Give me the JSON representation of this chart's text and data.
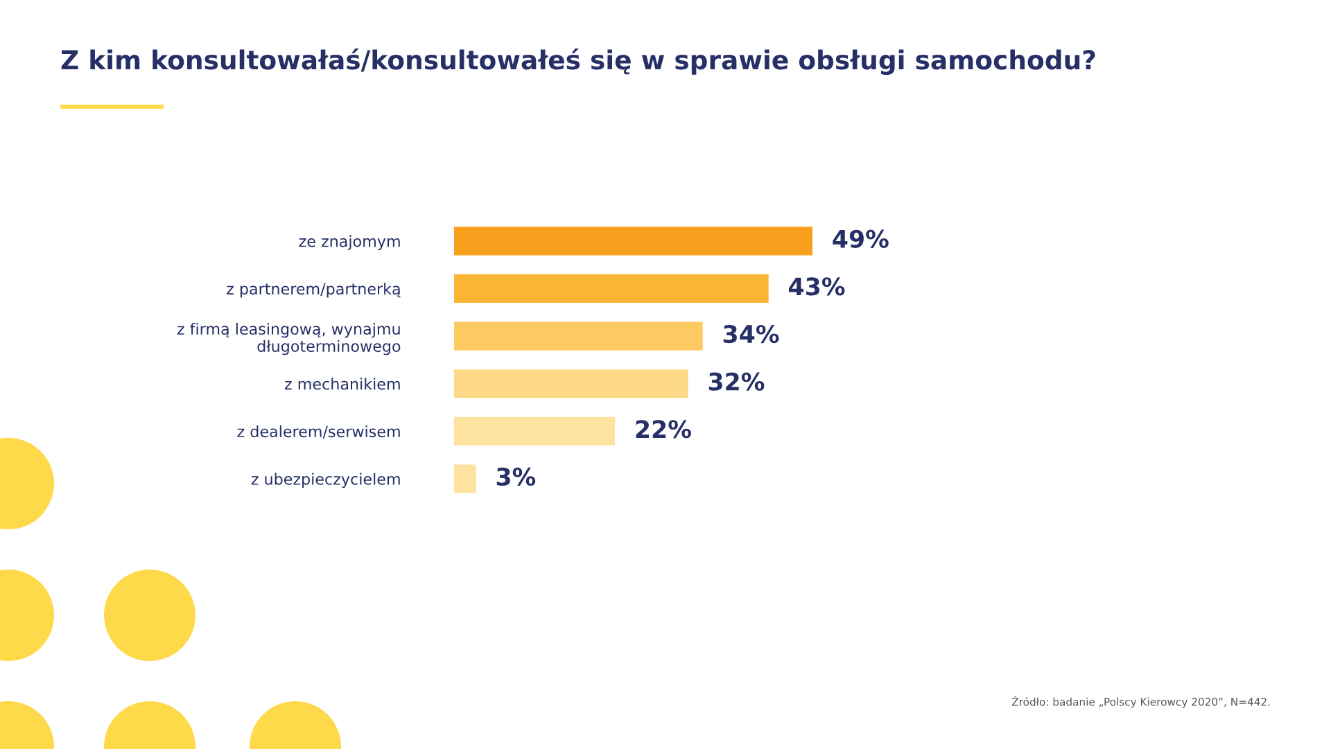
{
  "chart_data": {
    "type": "bar",
    "orientation": "horizontal",
    "title": "Z kim konsultowałaś/konsultowałeś się w sprawie obsługi samochodu?",
    "categories": [
      "ze znajomym",
      "z partnerem/partnerką",
      "z firmą leasingową, wynajmu\ndługoterminowego",
      "z mechanikiem",
      "z dealerem/serwisem",
      "z ubezpieczycielem"
    ],
    "values": [
      49,
      43,
      34,
      32,
      22,
      3
    ],
    "colors": [
      "#f99f1e",
      "#fbb534",
      "#fdc961",
      "#fdd885",
      "#fee3a0",
      "#fee3a0"
    ],
    "value_labels": [
      "49%",
      "43%",
      "34%",
      "32%",
      "22%",
      "3%"
    ],
    "annotations": [
      "Źródło: badanie „Polscy Kierowcy 2020”, N=442."
    ]
  }
}
